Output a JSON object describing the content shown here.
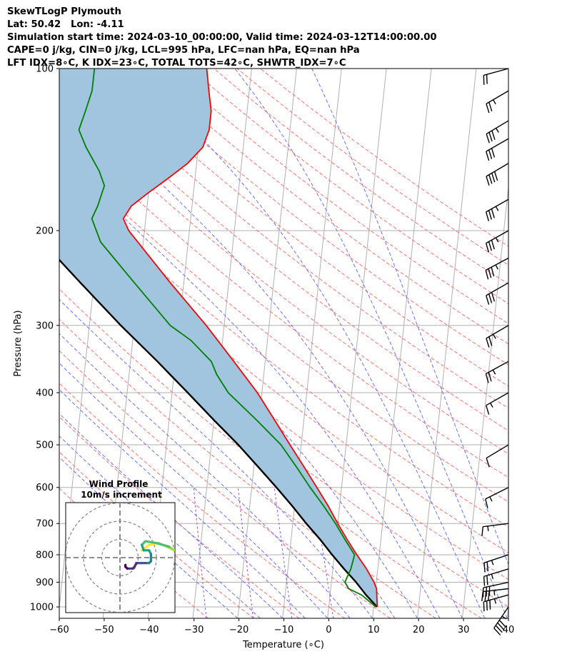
{
  "header": {
    "line1": "SkewTLogP Plymouth",
    "line2": "Lat: 50.42   Lon: -4.11",
    "line3": "Simulation start time: 2024-03-10_00:00:00, Valid time: 2024-03-12T14:00:00.00",
    "line4": "CAPE=0 j/kg, CIN=0 j/kg, LCL=995 hPa, LFC=nan hPa, EQ=nan hPa",
    "line5": "LFT IDX=8∘C, K IDX=23∘C, TOTAL TOTS=42∘C, SHWTR_IDX=7∘C"
  },
  "colors": {
    "temperature": "#ff0000",
    "dewpoint": "#008000",
    "parcel": "#000000",
    "cape_fill": "#a1c5df",
    "dry_adiabat": "#ff6e6e",
    "moist_adiabat": "#6e6eff",
    "mixing_ratio": "#9b4fcf",
    "isotherm": "#b0b0b0"
  },
  "chart_data": {
    "type": "skewt-logp",
    "xlabel": "Temperature (∘C)",
    "ylabel": "Pressure (hPa)",
    "xlim": [
      -60,
      40
    ],
    "ylim": [
      1050,
      100
    ],
    "x_ticks": [
      "−60",
      "−50",
      "−40",
      "−30",
      "−20",
      "−10",
      "0",
      "10",
      "20",
      "30",
      "40"
    ],
    "y_ticks": [
      "100",
      "200",
      "300",
      "400",
      "500",
      "600",
      "700",
      "800",
      "900",
      "1000"
    ],
    "y_scale": "log",
    "grid": true,
    "temperature_profile": [
      {
        "p": 1000,
        "t": 10.8
      },
      {
        "p": 950,
        "t": 10.4
      },
      {
        "p": 925,
        "t": 10.2
      },
      {
        "p": 900,
        "t": 9.5
      },
      {
        "p": 850,
        "t": 7.5
      },
      {
        "p": 800,
        "t": 5.0
      },
      {
        "p": 750,
        "t": 2.5
      },
      {
        "p": 700,
        "t": 0.0
      },
      {
        "p": 650,
        "t": -2.5
      },
      {
        "p": 600,
        "t": -5.5
      },
      {
        "p": 550,
        "t": -8.8
      },
      {
        "p": 500,
        "t": -12.5
      },
      {
        "p": 450,
        "t": -16.5
      },
      {
        "p": 400,
        "t": -21.0
      },
      {
        "p": 350,
        "t": -27.0
      },
      {
        "p": 300,
        "t": -34.0
      },
      {
        "p": 250,
        "t": -43.0
      },
      {
        "p": 200,
        "t": -53.5
      },
      {
        "p": 190,
        "t": -55.0
      },
      {
        "p": 180,
        "t": -53.5
      },
      {
        "p": 170,
        "t": -50.0
      },
      {
        "p": 160,
        "t": -46.0
      },
      {
        "p": 150,
        "t": -42.0
      },
      {
        "p": 140,
        "t": -39.0
      },
      {
        "p": 130,
        "t": -38.0
      },
      {
        "p": 120,
        "t": -38.0
      },
      {
        "p": 110,
        "t": -39.0
      },
      {
        "p": 100,
        "t": -40.0
      }
    ],
    "dewpoint_profile": [
      {
        "p": 1000,
        "t": 10.5
      },
      {
        "p": 950,
        "t": 7.0
      },
      {
        "p": 925,
        "t": 4.0
      },
      {
        "p": 900,
        "t": 3.0
      },
      {
        "p": 850,
        "t": 4.0
      },
      {
        "p": 800,
        "t": 4.5
      },
      {
        "p": 750,
        "t": 2.0
      },
      {
        "p": 700,
        "t": -0.5
      },
      {
        "p": 650,
        "t": -3.5
      },
      {
        "p": 600,
        "t": -7.0
      },
      {
        "p": 550,
        "t": -10.5
      },
      {
        "p": 500,
        "t": -14.5
      },
      {
        "p": 450,
        "t": -20.5
      },
      {
        "p": 400,
        "t": -27.5
      },
      {
        "p": 370,
        "t": -30.5
      },
      {
        "p": 350,
        "t": -32.0
      },
      {
        "p": 320,
        "t": -37.0
      },
      {
        "p": 300,
        "t": -42.0
      },
      {
        "p": 250,
        "t": -51.0
      },
      {
        "p": 210,
        "t": -59.5
      },
      {
        "p": 190,
        "t": -62.0
      },
      {
        "p": 180,
        "t": -61.0
      },
      {
        "p": 165,
        "t": -60.0
      },
      {
        "p": 155,
        "t": -61.5
      },
      {
        "p": 140,
        "t": -65.0
      },
      {
        "p": 130,
        "t": -67.0
      },
      {
        "p": 120,
        "t": -66.0
      },
      {
        "p": 110,
        "t": -65.0
      },
      {
        "p": 100,
        "t": -65.0
      }
    ],
    "parcel_profile": [
      {
        "p": 1000,
        "t": 10.8
      },
      {
        "p": 995,
        "t": 10.5
      },
      {
        "p": 950,
        "t": 8.0
      },
      {
        "p": 900,
        "t": 5.5
      },
      {
        "p": 850,
        "t": 2.5
      },
      {
        "p": 800,
        "t": -0.5
      },
      {
        "p": 750,
        "t": -3.5
      },
      {
        "p": 700,
        "t": -7.0
      },
      {
        "p": 650,
        "t": -10.5
      },
      {
        "p": 600,
        "t": -14.5
      },
      {
        "p": 550,
        "t": -19.0
      },
      {
        "p": 500,
        "t": -24.0
      },
      {
        "p": 450,
        "t": -30.0
      },
      {
        "p": 400,
        "t": -36.5
      },
      {
        "p": 350,
        "t": -44.0
      },
      {
        "p": 300,
        "t": -53.0
      },
      {
        "p": 250,
        "t": -63.0
      },
      {
        "p": 200,
        "t": -75.0
      },
      {
        "p": 150,
        "t": -90.0
      },
      {
        "p": 100,
        "t": -113.0
      }
    ],
    "wind_barbs": [
      {
        "p": 1000,
        "u": 13,
        "v": 19
      },
      {
        "p": 950,
        "u": 18,
        "v": 5
      },
      {
        "p": 925,
        "u": 17,
        "v": 2
      },
      {
        "p": 900,
        "u": 14,
        "v": 3
      },
      {
        "p": 850,
        "u": 13,
        "v": 4
      },
      {
        "p": 800,
        "u": 12,
        "v": 4
      },
      {
        "p": 700,
        "u": 8,
        "v": 1
      },
      {
        "p": 600,
        "u": 6,
        "v": 3
      },
      {
        "p": 500,
        "u": 5,
        "v": 3
      },
      {
        "p": 400,
        "u": 7,
        "v": 4
      },
      {
        "p": 350,
        "u": 11,
        "v": 6
      },
      {
        "p": 300,
        "u": 12,
        "v": 7
      },
      {
        "p": 250,
        "u": 14,
        "v": 8
      },
      {
        "p": 225,
        "u": 17,
        "v": 9
      },
      {
        "p": 200,
        "u": 16,
        "v": 9
      },
      {
        "p": 175,
        "u": 16,
        "v": 9
      },
      {
        "p": 150,
        "u": 17,
        "v": 10
      },
      {
        "p": 135,
        "u": 14,
        "v": 8
      },
      {
        "p": 125,
        "u": 15,
        "v": 9
      },
      {
        "p": 110,
        "u": 12,
        "v": 7
      },
      {
        "p": 100,
        "u": 11,
        "v": 3
      }
    ],
    "wind_profile_inset": {
      "title": "Wind Profile",
      "subtitle": "10m/s increment",
      "rings_ms": [
        10,
        20,
        30
      ],
      "hodograph": [
        {
          "u": 12,
          "v": -4
        },
        {
          "u": 16,
          "v": -7
        },
        {
          "u": 21,
          "v": -8
        },
        {
          "u": 26,
          "v": -6
        },
        {
          "u": 30,
          "v": -4
        },
        {
          "u": 27,
          "v": -6
        },
        {
          "u": 20,
          "v": -8
        },
        {
          "u": 14,
          "v": -9
        },
        {
          "u": 12,
          "v": -7
        },
        {
          "u": 13,
          "v": -4
        },
        {
          "u": 16,
          "v": -4
        },
        {
          "u": 17,
          "v": -2
        },
        {
          "u": 17,
          "v": 2
        },
        {
          "u": 16,
          "v": 3
        },
        {
          "u": 14,
          "v": 3
        },
        {
          "u": 12,
          "v": 3
        },
        {
          "u": 10,
          "v": 3
        },
        {
          "u": 9,
          "v": 3
        },
        {
          "u": 8,
          "v": 5
        },
        {
          "u": 7,
          "v": 6
        },
        {
          "u": 4,
          "v": 6
        },
        {
          "u": 3,
          "v": 5
        },
        {
          "u": 3,
          "v": 4
        }
      ]
    }
  }
}
